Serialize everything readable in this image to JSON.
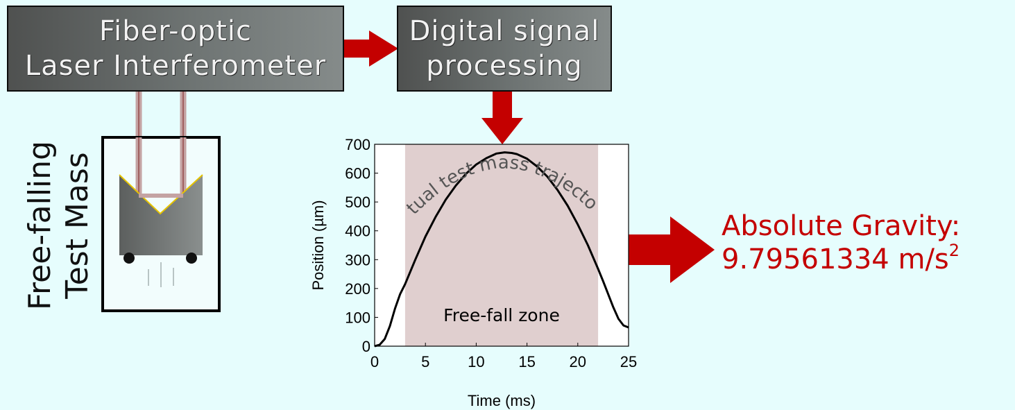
{
  "boxes": {
    "interferometer": {
      "line1": "Fiber-optic",
      "line2": "Laser Interferometer"
    },
    "dsp": {
      "line1": "Digital signal",
      "line2": "processing"
    }
  },
  "test_mass": {
    "line1": "Free-falling",
    "line2": "Test Mass"
  },
  "result": {
    "label": "Absolute Gravity:",
    "value": "9.79561334 m/s",
    "superscript": "2"
  },
  "colors": {
    "arrow": "#c40000",
    "background": "#e6fdfd",
    "zone": "#e0cfcf",
    "result_text": "#c40000"
  },
  "chart_data": {
    "type": "line",
    "xlabel": "Time (ms)",
    "ylabel": "Position (µm)",
    "xlim": [
      0,
      25
    ],
    "ylim": [
      0,
      700
    ],
    "xticks": [
      "0",
      "5",
      "10",
      "15",
      "20",
      "25"
    ],
    "yticks": [
      "0",
      "100",
      "200",
      "300",
      "400",
      "500",
      "600",
      "700"
    ],
    "zone": {
      "label": "Free-fall zone",
      "x_start": 3,
      "x_end": 22
    },
    "curve_label": "Actual test mass trajectory",
    "series": [
      {
        "x": [
          0,
          0.5,
          1,
          1.5,
          2,
          2.5,
          3,
          4,
          5,
          6,
          7,
          8,
          9,
          10,
          11,
          12,
          12.8,
          13.5,
          14,
          15,
          16,
          17,
          18,
          19,
          20,
          21,
          22,
          22.5,
          23,
          23.5,
          24,
          24.5,
          25
        ],
        "y": [
          0,
          5,
          25,
          70,
          130,
          180,
          215,
          300,
          380,
          448,
          508,
          557,
          598,
          630,
          652,
          668,
          672,
          670,
          666,
          650,
          623,
          588,
          542,
          487,
          422,
          350,
          268,
          225,
          180,
          135,
          95,
          72,
          65
        ]
      }
    ]
  }
}
